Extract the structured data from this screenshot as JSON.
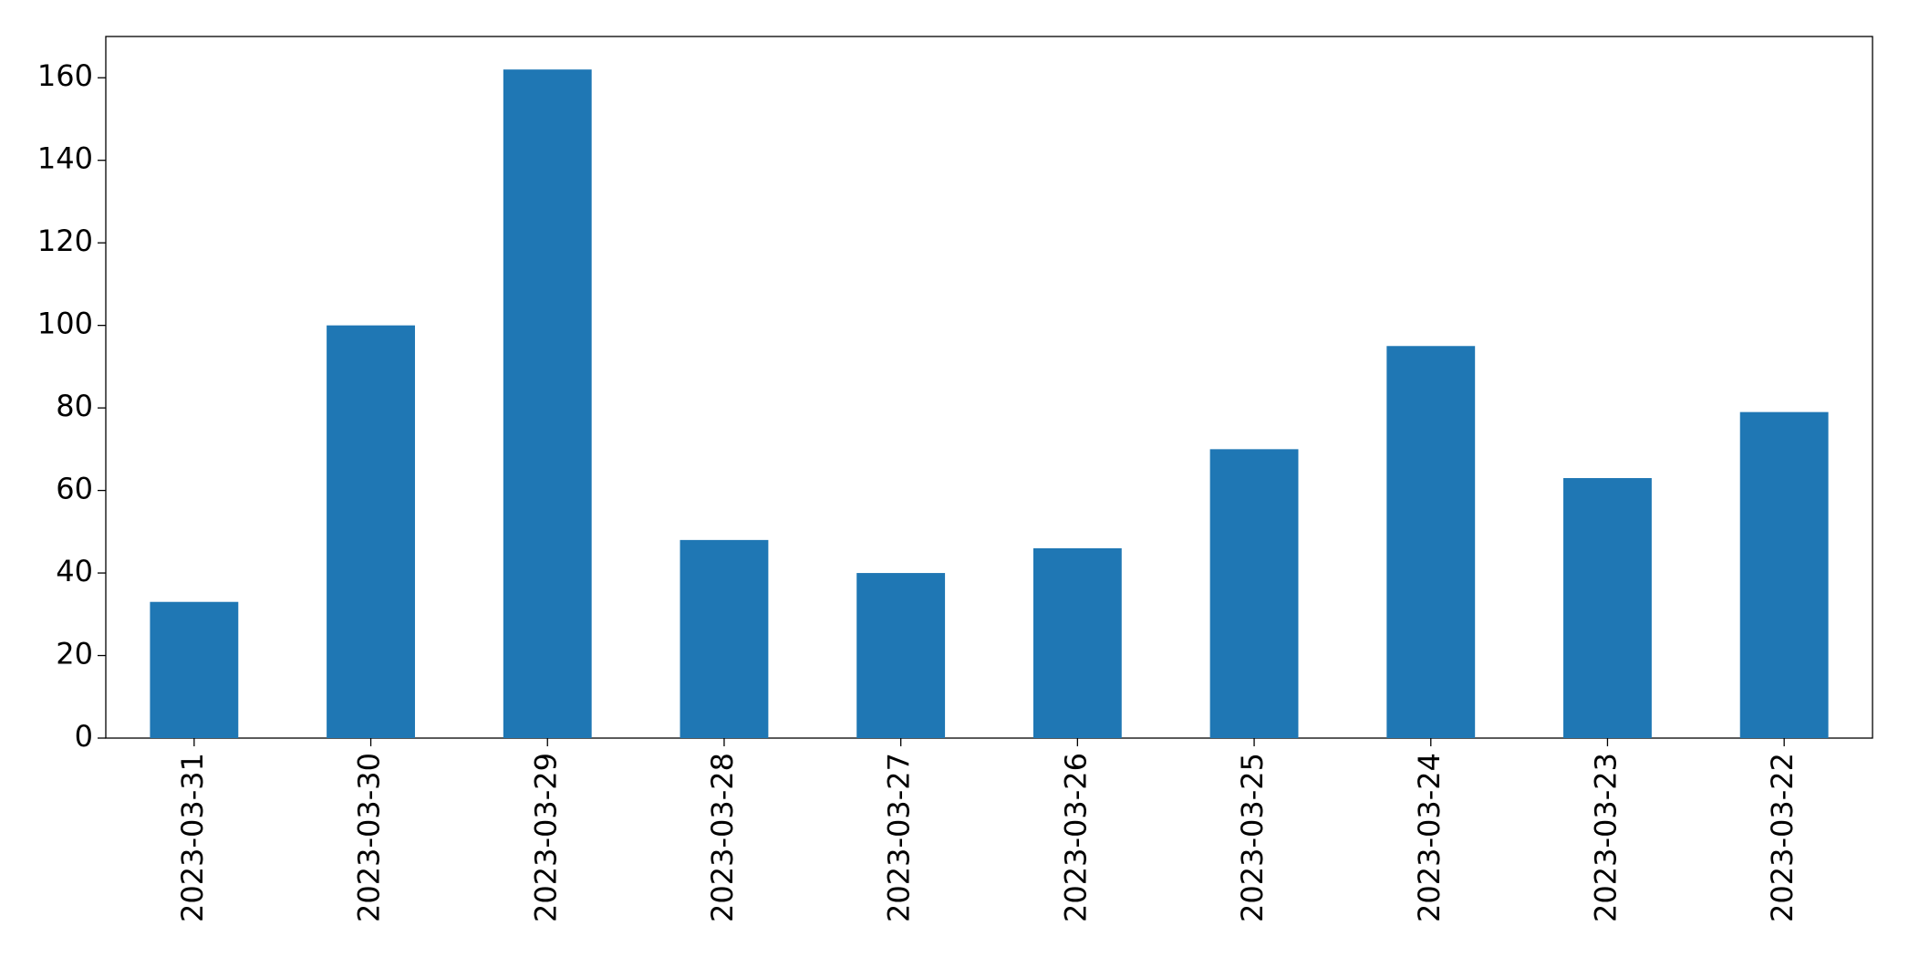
{
  "chart_data": {
    "type": "bar",
    "categories": [
      "2023-03-31",
      "2023-03-30",
      "2023-03-29",
      "2023-03-28",
      "2023-03-27",
      "2023-03-26",
      "2023-03-25",
      "2023-03-24",
      "2023-03-23",
      "2023-03-22"
    ],
    "values": [
      33,
      100,
      162,
      48,
      40,
      46,
      70,
      95,
      63,
      79
    ],
    "color": "#1f77b4",
    "ylim": [
      0,
      170
    ],
    "yticks": [
      0,
      20,
      40,
      60,
      80,
      100,
      120,
      140,
      160
    ],
    "grid": false
  }
}
